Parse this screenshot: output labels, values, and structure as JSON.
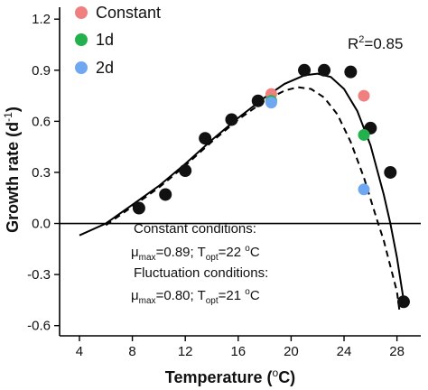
{
  "chart_data": {
    "type": "scatter",
    "xlabel": "Temperature (",
    "xlabel_unit": "o",
    "xlabel_end": "C)",
    "ylabel": "Growth rate (d",
    "ylabel_exp": "-1",
    "ylabel_end": ")",
    "xlim": [
      2.5,
      29.8
    ],
    "ylim": [
      -0.66,
      1.27
    ],
    "x_ticks": [
      4,
      8,
      12,
      16,
      20,
      24,
      28
    ],
    "y_ticks": [
      -0.6,
      -0.3,
      0.0,
      0.3,
      0.6,
      0.9,
      1.2
    ],
    "y_tick_labels": [
      "-0.6",
      "-0.3",
      "0.0",
      "0.3",
      "0.6",
      "0.9",
      "1.2"
    ],
    "zero_line": 0,
    "legend_position": "top-left",
    "legend": [
      {
        "label": "Constant",
        "color": "#f08080"
      },
      {
        "label": "1d",
        "color": "#22b14c"
      },
      {
        "label": "2d",
        "color": "#6fa8f0"
      }
    ],
    "r_squared_text": {
      "base": "R",
      "sup": "2",
      "rest": "=0.85"
    },
    "annotations": {
      "constant_title": "Constant conditions:",
      "constant_params": {
        "mu": "μ",
        "max": "max",
        "eq1": "=0.89; T",
        "opt": "opt",
        "eq2": "=22 ",
        "deg": "o",
        "unit": "C"
      },
      "fluct_title": "Fluctuation conditions:",
      "fluct_params": {
        "mu": "μ",
        "max": "max",
        "eq1": "=0.80; T",
        "opt": "opt",
        "eq2": "=21 ",
        "deg": "o",
        "unit": "C"
      }
    },
    "series": [
      {
        "name": "Constant",
        "color": "#111111",
        "points": [
          {
            "x": 8.5,
            "y": 0.09
          },
          {
            "x": 10.5,
            "y": 0.17
          },
          {
            "x": 12.0,
            "y": 0.31
          },
          {
            "x": 13.5,
            "y": 0.5
          },
          {
            "x": 15.5,
            "y": 0.61
          },
          {
            "x": 17.5,
            "y": 0.72
          },
          {
            "x": 21.0,
            "y": 0.9
          },
          {
            "x": 22.5,
            "y": 0.9
          },
          {
            "x": 24.5,
            "y": 0.89
          },
          {
            "x": 26.0,
            "y": 0.56
          },
          {
            "x": 27.5,
            "y": 0.3
          },
          {
            "x": 28.5,
            "y": -0.46
          }
        ]
      },
      {
        "name": "Constant",
        "color": "#f08080",
        "points": [
          {
            "x": 18.5,
            "y": 0.76
          },
          {
            "x": 25.5,
            "y": 0.75
          }
        ]
      },
      {
        "name": "1d",
        "color": "#22b14c",
        "points": [
          {
            "x": 18.5,
            "y": 0.72
          },
          {
            "x": 25.5,
            "y": 0.52
          }
        ]
      },
      {
        "name": "2d",
        "color": "#6fa8f0",
        "points": [
          {
            "x": 18.5,
            "y": 0.71
          },
          {
            "x": 25.5,
            "y": 0.2
          }
        ]
      }
    ],
    "fit_curves": [
      {
        "name": "Constant",
        "style": "solid",
        "points": [
          [
            4.0,
            -0.07
          ],
          [
            6.0,
            0.0
          ],
          [
            8.0,
            0.11
          ],
          [
            10.0,
            0.22
          ],
          [
            12.0,
            0.35
          ],
          [
            14.0,
            0.49
          ],
          [
            16.0,
            0.62
          ],
          [
            18.0,
            0.74
          ],
          [
            19.5,
            0.82
          ],
          [
            21.0,
            0.87
          ],
          [
            22.0,
            0.88
          ],
          [
            23.0,
            0.86
          ],
          [
            24.0,
            0.79
          ],
          [
            25.0,
            0.66
          ],
          [
            26.0,
            0.46
          ],
          [
            27.0,
            0.17
          ],
          [
            27.5,
            0.0
          ],
          [
            28.0,
            -0.2
          ],
          [
            28.5,
            -0.45
          ]
        ]
      },
      {
        "name": "Fluctuation",
        "style": "dashed",
        "points": [
          [
            6.0,
            -0.01
          ],
          [
            8.0,
            0.1
          ],
          [
            10.0,
            0.21
          ],
          [
            12.0,
            0.34
          ],
          [
            14.0,
            0.48
          ],
          [
            16.0,
            0.61
          ],
          [
            18.0,
            0.72
          ],
          [
            19.5,
            0.78
          ],
          [
            20.5,
            0.8
          ],
          [
            21.5,
            0.79
          ],
          [
            22.5,
            0.74
          ],
          [
            23.5,
            0.64
          ],
          [
            24.5,
            0.48
          ],
          [
            25.5,
            0.27
          ],
          [
            26.5,
            0.02
          ],
          [
            27.0,
            -0.1
          ],
          [
            27.5,
            -0.25
          ],
          [
            28.0,
            -0.4
          ],
          [
            28.2,
            -0.52
          ]
        ]
      }
    ]
  }
}
